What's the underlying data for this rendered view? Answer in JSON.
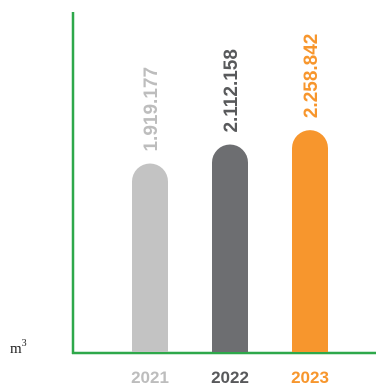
{
  "chart_data": {
    "type": "bar",
    "categories": [
      "2021",
      "2022",
      "2023"
    ],
    "values": [
      1919177,
      2112158,
      2258842
    ],
    "value_labels": [
      "1.919.177",
      "2.112.158",
      "2.258.842"
    ],
    "unit": "m",
    "unit_superscript": "3",
    "ylim": [
      0,
      3360000
    ],
    "grid": false,
    "colors": {
      "bars": [
        "#c3c3c3",
        "#6d6e71",
        "#f7962d"
      ],
      "labels": [
        "#bdbdbd",
        "#58595b",
        "#f7962d"
      ],
      "axis": "#2ea84a"
    }
  }
}
